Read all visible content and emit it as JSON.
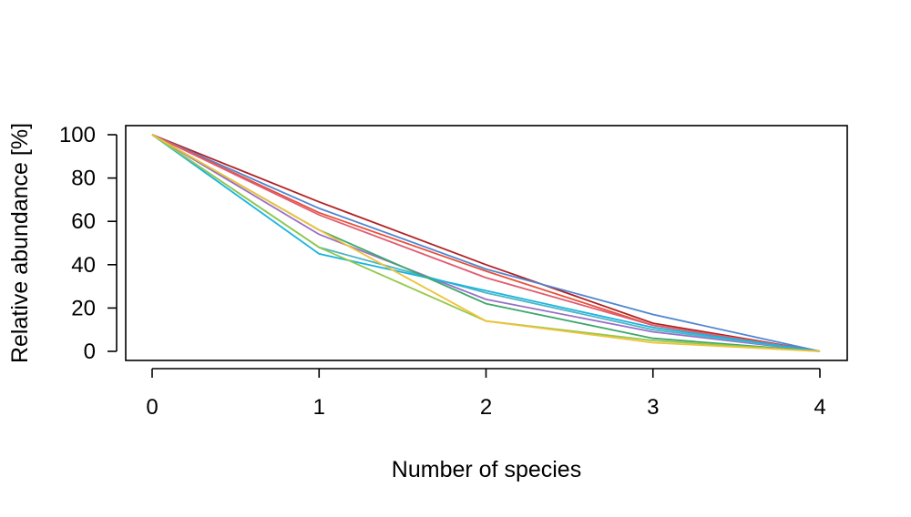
{
  "chart_data": {
    "type": "line",
    "xlabel": "Number of species",
    "ylabel": "Relative abundance [%]",
    "xlim": [
      0,
      4
    ],
    "ylim": [
      0,
      100
    ],
    "xticks": [
      0,
      1,
      2,
      3,
      4
    ],
    "yticks": [
      0,
      20,
      40,
      60,
      80,
      100
    ],
    "grid": false,
    "legend": "none",
    "x": [
      0,
      1,
      2,
      3,
      4
    ],
    "series": [
      {
        "color": "#b22222",
        "values": [
          100,
          69,
          40,
          13,
          0
        ]
      },
      {
        "color": "#4f86d0",
        "values": [
          100,
          66,
          38,
          17,
          0
        ]
      },
      {
        "color": "#e8503a",
        "values": [
          100,
          64,
          37,
          12,
          0
        ]
      },
      {
        "color": "#e05c70",
        "values": [
          100,
          63,
          34,
          12,
          0
        ]
      },
      {
        "color": "#9a6fc7",
        "values": [
          100,
          54,
          24,
          9,
          0
        ]
      },
      {
        "color": "#4db6c4",
        "values": [
          100,
          48,
          27,
          10,
          0
        ]
      },
      {
        "color": "#1ab4e0",
        "values": [
          100,
          45,
          28,
          11,
          0
        ]
      },
      {
        "color": "#3ea86a",
        "values": [
          100,
          56,
          22,
          6,
          0
        ]
      },
      {
        "color": "#94c84a",
        "values": [
          100,
          48,
          14,
          5,
          0
        ]
      },
      {
        "color": "#f0c23a",
        "values": [
          100,
          56,
          14,
          4,
          0
        ]
      }
    ]
  }
}
